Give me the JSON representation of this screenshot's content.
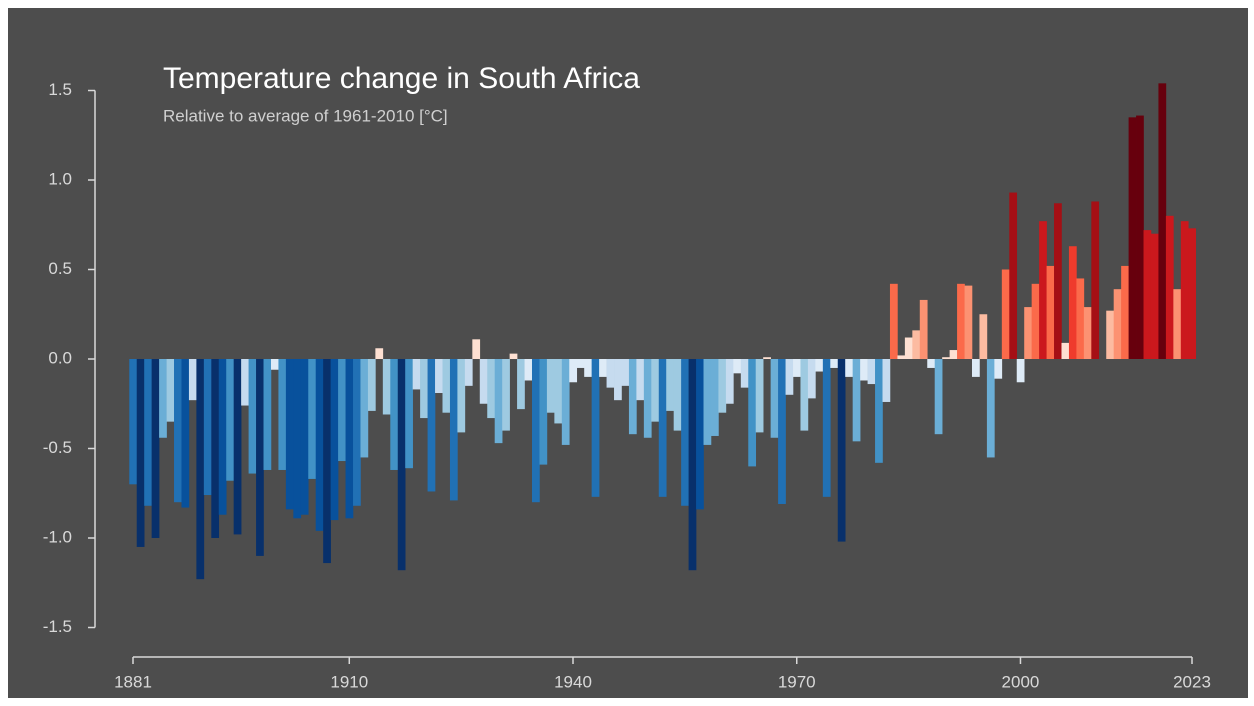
{
  "chart_data": {
    "type": "bar",
    "title": "Temperature change in South Africa",
    "subtitle": "Relative to average of 1961-2010  [°C]",
    "x": [
      1881,
      1882,
      1883,
      1884,
      1885,
      1886,
      1887,
      1888,
      1889,
      1890,
      1891,
      1892,
      1893,
      1894,
      1895,
      1896,
      1897,
      1898,
      1899,
      1900,
      1901,
      1902,
      1903,
      1904,
      1905,
      1906,
      1907,
      1908,
      1909,
      1910,
      1911,
      1912,
      1913,
      1914,
      1915,
      1916,
      1917,
      1918,
      1919,
      1920,
      1921,
      1922,
      1923,
      1924,
      1925,
      1926,
      1927,
      1928,
      1929,
      1930,
      1931,
      1932,
      1933,
      1934,
      1935,
      1936,
      1937,
      1938,
      1939,
      1940,
      1941,
      1942,
      1943,
      1944,
      1945,
      1946,
      1947,
      1948,
      1949,
      1950,
      1951,
      1952,
      1953,
      1954,
      1955,
      1956,
      1957,
      1958,
      1959,
      1960,
      1961,
      1962,
      1963,
      1964,
      1965,
      1966,
      1967,
      1968,
      1969,
      1970,
      1971,
      1972,
      1973,
      1974,
      1975,
      1976,
      1977,
      1978,
      1979,
      1980,
      1981,
      1982,
      1983,
      1984,
      1985,
      1986,
      1987,
      1988,
      1989,
      1990,
      1991,
      1992,
      1993,
      1994,
      1995,
      1996,
      1997,
      1998,
      1999,
      2000,
      2001,
      2002,
      2003,
      2004,
      2005,
      2006,
      2007,
      2008,
      2009,
      2010,
      2011,
      2012,
      2013,
      2014,
      2015,
      2016,
      2017,
      2018,
      2019,
      2020,
      2021,
      2022,
      2023
    ],
    "values": [
      -0.7,
      -1.05,
      -0.82,
      -1.0,
      -0.44,
      -0.35,
      -0.8,
      -0.83,
      -0.23,
      -1.23,
      -0.76,
      -1.0,
      -0.87,
      -0.68,
      -0.98,
      -0.26,
      -0.64,
      -1.1,
      -0.62,
      -0.06,
      -0.62,
      -0.84,
      -0.89,
      -0.87,
      -0.67,
      -0.96,
      -1.14,
      -0.9,
      -0.57,
      -0.89,
      -0.82,
      -0.55,
      -0.29,
      0.06,
      -0.31,
      -0.62,
      -1.18,
      -0.61,
      -0.17,
      -0.33,
      -0.74,
      -0.19,
      -0.3,
      -0.79,
      -0.41,
      -0.15,
      0.11,
      -0.25,
      -0.33,
      -0.47,
      -0.4,
      0.03,
      -0.28,
      -0.12,
      -0.8,
      -0.59,
      -0.3,
      -0.36,
      -0.48,
      -0.13,
      -0.05,
      -0.1,
      -0.77,
      -0.1,
      -0.16,
      -0.23,
      -0.15,
      -0.42,
      -0.23,
      -0.44,
      -0.35,
      -0.77,
      -0.29,
      -0.4,
      -0.82,
      -1.18,
      -0.84,
      -0.48,
      -0.43,
      -0.3,
      -0.25,
      -0.08,
      -0.16,
      -0.6,
      -0.41,
      0.01,
      -0.44,
      -0.81,
      -0.2,
      -0.1,
      -0.4,
      -0.22,
      -0.07,
      -0.77,
      -0.05,
      -1.02,
      -0.1,
      -0.46,
      -0.12,
      -0.14,
      -0.58,
      -0.24,
      0.42,
      0.02,
      0.12,
      0.16,
      0.33,
      -0.05,
      -0.42,
      0.01,
      0.05,
      0.42,
      0.41,
      -0.1,
      0.25,
      -0.55,
      -0.11,
      0.5,
      0.93,
      -0.13,
      0.29,
      0.42,
      0.77,
      0.52,
      0.87,
      0.09,
      0.63,
      0.45,
      0.29,
      0.88,
      0.0,
      0.27,
      0.39,
      0.52,
      1.35,
      1.36,
      0.72,
      0.7,
      1.54,
      0.8,
      0.39,
      0.77,
      0.73
    ],
    "xlim": [
      1881,
      2023
    ],
    "xticks": [
      1881,
      1910,
      1940,
      1970,
      2000,
      2023
    ],
    "ylim": [
      -1.5,
      1.5
    ],
    "yticks": [
      {
        "value": -1.5,
        "label": "-1.5"
      },
      {
        "value": -1.0,
        "label": "-1.0"
      },
      {
        "value": -0.5,
        "label": "-0.5"
      },
      {
        "value": 0,
        "label": "0.0"
      },
      {
        "value": 0.5,
        "label": "0.5"
      },
      {
        "value": 1.0,
        "label": "1.0"
      },
      {
        "value": 1.5,
        "label": "1.5"
      }
    ],
    "colormap": [
      "#08306b",
      "#08519c",
      "#2171b5",
      "#4292c6",
      "#6baed6",
      "#9ecae1",
      "#c6dbef",
      "#deebf7",
      "#fee0d2",
      "#fcbba1",
      "#fc9272",
      "#fb6a4a",
      "#ef3b2c",
      "#cb181d",
      "#a50f15",
      "#67000d"
    ],
    "color_domain": [
      -1.1,
      1.1
    ]
  }
}
